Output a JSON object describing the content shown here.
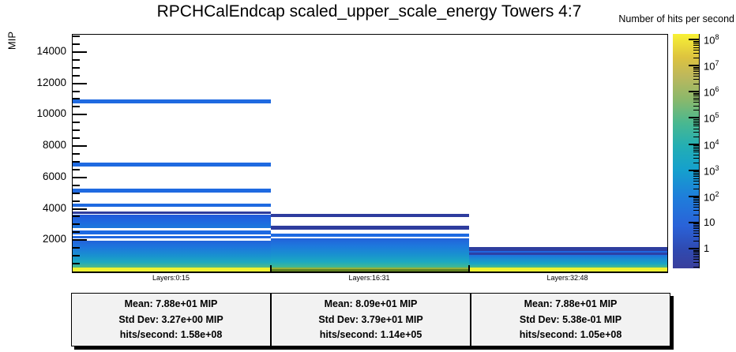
{
  "title": "RPCHCalEndcap scaled_upper_scale_energy Towers 4:7",
  "y_axis": {
    "label": "MIP",
    "max": 15100,
    "major_step": 2000,
    "minor_step": 500
  },
  "colorbar": {
    "label": "Number of hits per second",
    "scale": "log",
    "decades": [
      {
        "exp": 8,
        "base": "10",
        "sup": "8"
      },
      {
        "exp": 7,
        "base": "10",
        "sup": "7"
      },
      {
        "exp": 6,
        "base": "10",
        "sup": "6"
      },
      {
        "exp": 5,
        "base": "10",
        "sup": "5"
      },
      {
        "exp": 4,
        "base": "10",
        "sup": "4"
      },
      {
        "exp": 3,
        "base": "10",
        "sup": "3"
      },
      {
        "exp": 2,
        "base": "10",
        "sup": "2"
      },
      {
        "exp": 1,
        "base": "10",
        "sup": ""
      },
      {
        "exp": 0,
        "base": "1",
        "sup": ""
      }
    ],
    "gradient": [
      [
        "#3a3f9c",
        0
      ],
      [
        "#2f4ab1",
        0.08
      ],
      [
        "#2a62d8",
        0.18
      ],
      [
        "#1f7ddb",
        0.3
      ],
      [
        "#15a0cd",
        0.42
      ],
      [
        "#23aeb4",
        0.52
      ],
      [
        "#49b890",
        0.62
      ],
      [
        "#8ab86b",
        0.72
      ],
      [
        "#bdb85c",
        0.82
      ],
      [
        "#ddc33f",
        0.9
      ],
      [
        "#f8f135",
        1
      ]
    ]
  },
  "chart_data": {
    "type": "heatmap",
    "title": "RPCHCalEndcap scaled_upper_scale_energy Towers 4:7",
    "ylabel": "MIP",
    "ylim": [
      0,
      15100
    ],
    "zlabel": "Number of hits per second",
    "zscale": "log",
    "zlim": [
      1,
      100000000
    ],
    "categories": [
      "Layers:0:15",
      "Layers:16:31",
      "Layers:32:48"
    ],
    "panels": [
      {
        "label": "Layers:0:15",
        "stats_lines": [
          "Mean: 7.88e+01 MIP",
          "Std Dev: 3.27e+00 MIP",
          "hits/second: 1.58e+08"
        ],
        "bands": [
          {
            "lo": 0,
            "hi": 250,
            "color": "#edf232"
          },
          {
            "lo": 250,
            "hi": 1970,
            "gradient": [
              [
                "#52ba84",
                0
              ],
              [
                "#1ca9c1",
                0.2
              ],
              [
                "#1991d0",
                0.45
              ],
              [
                "#1e77dd",
                0.75
              ],
              [
                "#2263da",
                1
              ]
            ]
          },
          {
            "lo": 2100,
            "hi": 2280,
            "color": "#2167e0"
          },
          {
            "lo": 2380,
            "hi": 2600,
            "color": "#1e6ae2"
          },
          {
            "lo": 2790,
            "hi": 3650,
            "gradient": [
              [
                "#1b78dc",
                0
              ],
              [
                "#1e68e0",
                0.5
              ],
              [
                "#2159d9",
                1
              ]
            ]
          },
          {
            "lo": 3650,
            "hi": 3810,
            "color": "#2e3c9e"
          },
          {
            "lo": 4150,
            "hi": 4350,
            "color": "#1f6ae1"
          },
          {
            "lo": 5040,
            "hi": 5290,
            "color": "#1f6ae1"
          },
          {
            "lo": 6700,
            "hi": 6950,
            "color": "#1f6ae1"
          },
          {
            "lo": 10740,
            "hi": 10990,
            "color": "#1f6ae1"
          }
        ]
      },
      {
        "label": "Layers:16:31",
        "stats_lines": [
          "Mean: 8.09e+01 MIP",
          "Std Dev: 3.79e+01 MIP",
          "hits/second: 1.14e+05"
        ],
        "bands": [
          {
            "lo": 0,
            "hi": 130,
            "color": "#5f801f"
          },
          {
            "lo": 130,
            "hi": 250,
            "color": "#96b23c"
          },
          {
            "lo": 250,
            "hi": 2100,
            "gradient": [
              [
                "#45b98c",
                0
              ],
              [
                "#1ba9c2",
                0.2
              ],
              [
                "#1991d0",
                0.45
              ],
              [
                "#1e77dd",
                0.75
              ],
              [
                "#2263da",
                1
              ]
            ]
          },
          {
            "lo": 2220,
            "hi": 2440,
            "color": "#1e6ae2"
          },
          {
            "lo": 2690,
            "hi": 2900,
            "color": "#2e3c9e"
          },
          {
            "lo": 3480,
            "hi": 3700,
            "color": "#2e3c9e"
          }
        ]
      },
      {
        "label": "Layers:32:48",
        "stats_lines": [
          "Mean: 7.88e+01 MIP",
          "Std Dev: 5.38e-01 MIP",
          "hits/second: 1.05e+08"
        ],
        "bands": [
          {
            "lo": 0,
            "hi": 250,
            "color": "#edf232"
          },
          {
            "lo": 250,
            "hi": 1060,
            "gradient": [
              [
                "#4eba84",
                0
              ],
              [
                "#18a6c5",
                0.3
              ],
              [
                "#1a8ed1",
                0.65
              ],
              [
                "#1e70de",
                1
              ]
            ]
          },
          {
            "lo": 1060,
            "hi": 1190,
            "color": "#2b41a6"
          },
          {
            "lo": 1190,
            "hi": 1310,
            "color": "#2066de"
          },
          {
            "lo": 1310,
            "hi": 1560,
            "color": "#2e3d9e"
          }
        ]
      }
    ]
  }
}
